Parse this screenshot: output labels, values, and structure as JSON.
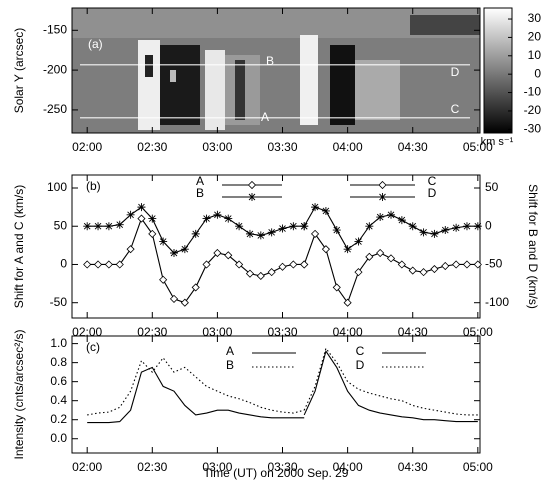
{
  "chart_data": [
    {
      "type": "heatmap",
      "label": "(a)",
      "annotations": [
        "A",
        "B",
        "C",
        "D"
      ],
      "ylabel": "Solar Y (arcsec)",
      "xlim": [
        113,
        301
      ],
      "xticks": [
        {
          "value": 120,
          "label": "02:00"
        },
        {
          "value": 150,
          "label": "02:30"
        },
        {
          "value": 180,
          "label": "03:00"
        },
        {
          "value": 210,
          "label": "03:30"
        },
        {
          "value": 240,
          "label": "04:00"
        },
        {
          "value": 270,
          "label": "04:30"
        },
        {
          "value": 300,
          "label": "05:00"
        }
      ],
      "ylim": [
        -279,
        -122
      ],
      "yticks": [
        -150,
        -200,
        -250
      ],
      "colorbar": {
        "label": "km s⁻¹",
        "clim": [
          -32,
          36
        ],
        "ticks": [
          30,
          20,
          10,
          0,
          -10,
          -20,
          -30
        ]
      }
    },
    {
      "type": "line",
      "label": "(b)",
      "ylabel": "Shift for A and C (km/s)",
      "y2label": "Shift for B and D (km/s)",
      "xlim": [
        113,
        301
      ],
      "xticks": [
        {
          "value": 120,
          "label": "02:00"
        },
        {
          "value": 150,
          "label": "02:30"
        },
        {
          "value": 180,
          "label": "03:00"
        },
        {
          "value": 210,
          "label": "03:30"
        },
        {
          "value": 240,
          "label": "04:00"
        },
        {
          "value": 270,
          "label": "04:30"
        },
        {
          "value": 300,
          "label": "05:00"
        }
      ],
      "ylim": [
        -70,
        117
      ],
      "yticks": [
        -50,
        0,
        50,
        100
      ],
      "y2lim": [
        -120,
        67
      ],
      "y2ticks": [
        50,
        0,
        -50,
        -100
      ],
      "series": [
        {
          "name": "A",
          "color": "#000000",
          "marker": "diamond",
          "axis": "y",
          "x": [
            120,
            125,
            130,
            135,
            140,
            145,
            150,
            155,
            160,
            165,
            170,
            175,
            180,
            185,
            190,
            195,
            200,
            205,
            210,
            215,
            220
          ],
          "values": [
            0,
            0,
            0,
            0,
            20,
            60,
            40,
            -20,
            -45,
            -50,
            -30,
            0,
            15,
            12,
            0,
            -12,
            -15,
            -10,
            -3,
            0,
            0
          ]
        },
        {
          "name": "B",
          "color": "#000000",
          "marker": "asterisk",
          "axis": "y2",
          "x": [
            120,
            125,
            130,
            135,
            140,
            145,
            150,
            155,
            160,
            165,
            170,
            175,
            180,
            185,
            190,
            195,
            200,
            205,
            210,
            215,
            220
          ],
          "values": [
            0,
            0,
            0,
            2,
            15,
            25,
            10,
            -20,
            -35,
            -30,
            -10,
            10,
            15,
            10,
            0,
            -10,
            -12,
            -8,
            -3,
            0,
            0
          ]
        },
        {
          "name": "C",
          "color": "#000000",
          "marker": "diamond",
          "axis": "y",
          "x": [
            220,
            225,
            230,
            235,
            240,
            245,
            250,
            255,
            260,
            265,
            270,
            275,
            280,
            285,
            290,
            295,
            300
          ],
          "values": [
            0,
            40,
            20,
            -30,
            -50,
            -10,
            10,
            15,
            8,
            0,
            -8,
            -10,
            -6,
            -2,
            0,
            0,
            0
          ]
        },
        {
          "name": "D",
          "color": "#000000",
          "marker": "asterisk",
          "axis": "y2",
          "x": [
            220,
            225,
            230,
            235,
            240,
            245,
            250,
            255,
            260,
            265,
            270,
            275,
            280,
            285,
            290,
            295,
            300
          ],
          "values": [
            0,
            25,
            20,
            -5,
            -30,
            -20,
            0,
            12,
            15,
            8,
            0,
            -8,
            -10,
            -5,
            -2,
            0,
            0
          ]
        }
      ]
    },
    {
      "type": "line",
      "label": "(c)",
      "ylabel": "Intensity (cnts/arcsec²/s)",
      "xlabel": "Time (UT) on 2000 Sep. 29",
      "xlim": [
        113,
        301
      ],
      "xticks": [
        {
          "value": 120,
          "label": "02:00"
        },
        {
          "value": 150,
          "label": "02:30"
        },
        {
          "value": 180,
          "label": "03:00"
        },
        {
          "value": 210,
          "label": "03:30"
        },
        {
          "value": 240,
          "label": "04:00"
        },
        {
          "value": 270,
          "label": "04:30"
        },
        {
          "value": 300,
          "label": "05:00"
        }
      ],
      "ylim": [
        -0.15,
        1.08
      ],
      "yticks": [
        {
          "value": 0,
          "label": "0.0"
        },
        0.2,
        0.4,
        0.6,
        0.8,
        {
          "value": 1,
          "label": "1.0"
        }
      ],
      "series": [
        {
          "name": "A",
          "color": "#000000",
          "linestyle": "solid",
          "x": [
            120,
            125,
            130,
            135,
            140,
            145,
            150,
            155,
            160,
            165,
            170,
            175,
            180,
            185,
            190,
            195,
            200,
            205,
            210,
            215,
            220
          ],
          "values": [
            0.17,
            0.17,
            0.17,
            0.18,
            0.3,
            0.7,
            0.75,
            0.55,
            0.5,
            0.35,
            0.25,
            0.27,
            0.3,
            0.3,
            0.27,
            0.25,
            0.23,
            0.22,
            0.22,
            0.22,
            0.22
          ]
        },
        {
          "name": "B",
          "color": "#000000",
          "linestyle": "dotted",
          "x": [
            120,
            125,
            130,
            135,
            140,
            145,
            150,
            155,
            160,
            165,
            170,
            175,
            180,
            185,
            190,
            195,
            200,
            205,
            210,
            215,
            220
          ],
          "values": [
            0.25,
            0.27,
            0.28,
            0.33,
            0.5,
            0.82,
            0.7,
            0.85,
            0.7,
            0.75,
            0.65,
            0.55,
            0.5,
            0.45,
            0.42,
            0.38,
            0.33,
            0.3,
            0.28,
            0.27,
            0.3
          ]
        },
        {
          "name": "C",
          "color": "#000000",
          "linestyle": "solid",
          "x": [
            220,
            225,
            230,
            235,
            240,
            245,
            250,
            255,
            260,
            265,
            270,
            275,
            280,
            285,
            290,
            295,
            300
          ],
          "values": [
            0.25,
            0.5,
            0.92,
            0.75,
            0.5,
            0.35,
            0.3,
            0.27,
            0.25,
            0.23,
            0.22,
            0.2,
            0.2,
            0.19,
            0.18,
            0.18,
            0.18
          ]
        },
        {
          "name": "D",
          "color": "#000000",
          "linestyle": "dotted",
          "x": [
            220,
            225,
            230,
            235,
            240,
            245,
            250,
            255,
            260,
            265,
            270,
            275,
            280,
            285,
            290,
            295,
            300
          ],
          "values": [
            0.3,
            0.55,
            0.95,
            0.8,
            0.6,
            0.52,
            0.48,
            0.45,
            0.42,
            0.4,
            0.35,
            0.32,
            0.3,
            0.28,
            0.26,
            0.25,
            0.25
          ]
        }
      ]
    }
  ]
}
